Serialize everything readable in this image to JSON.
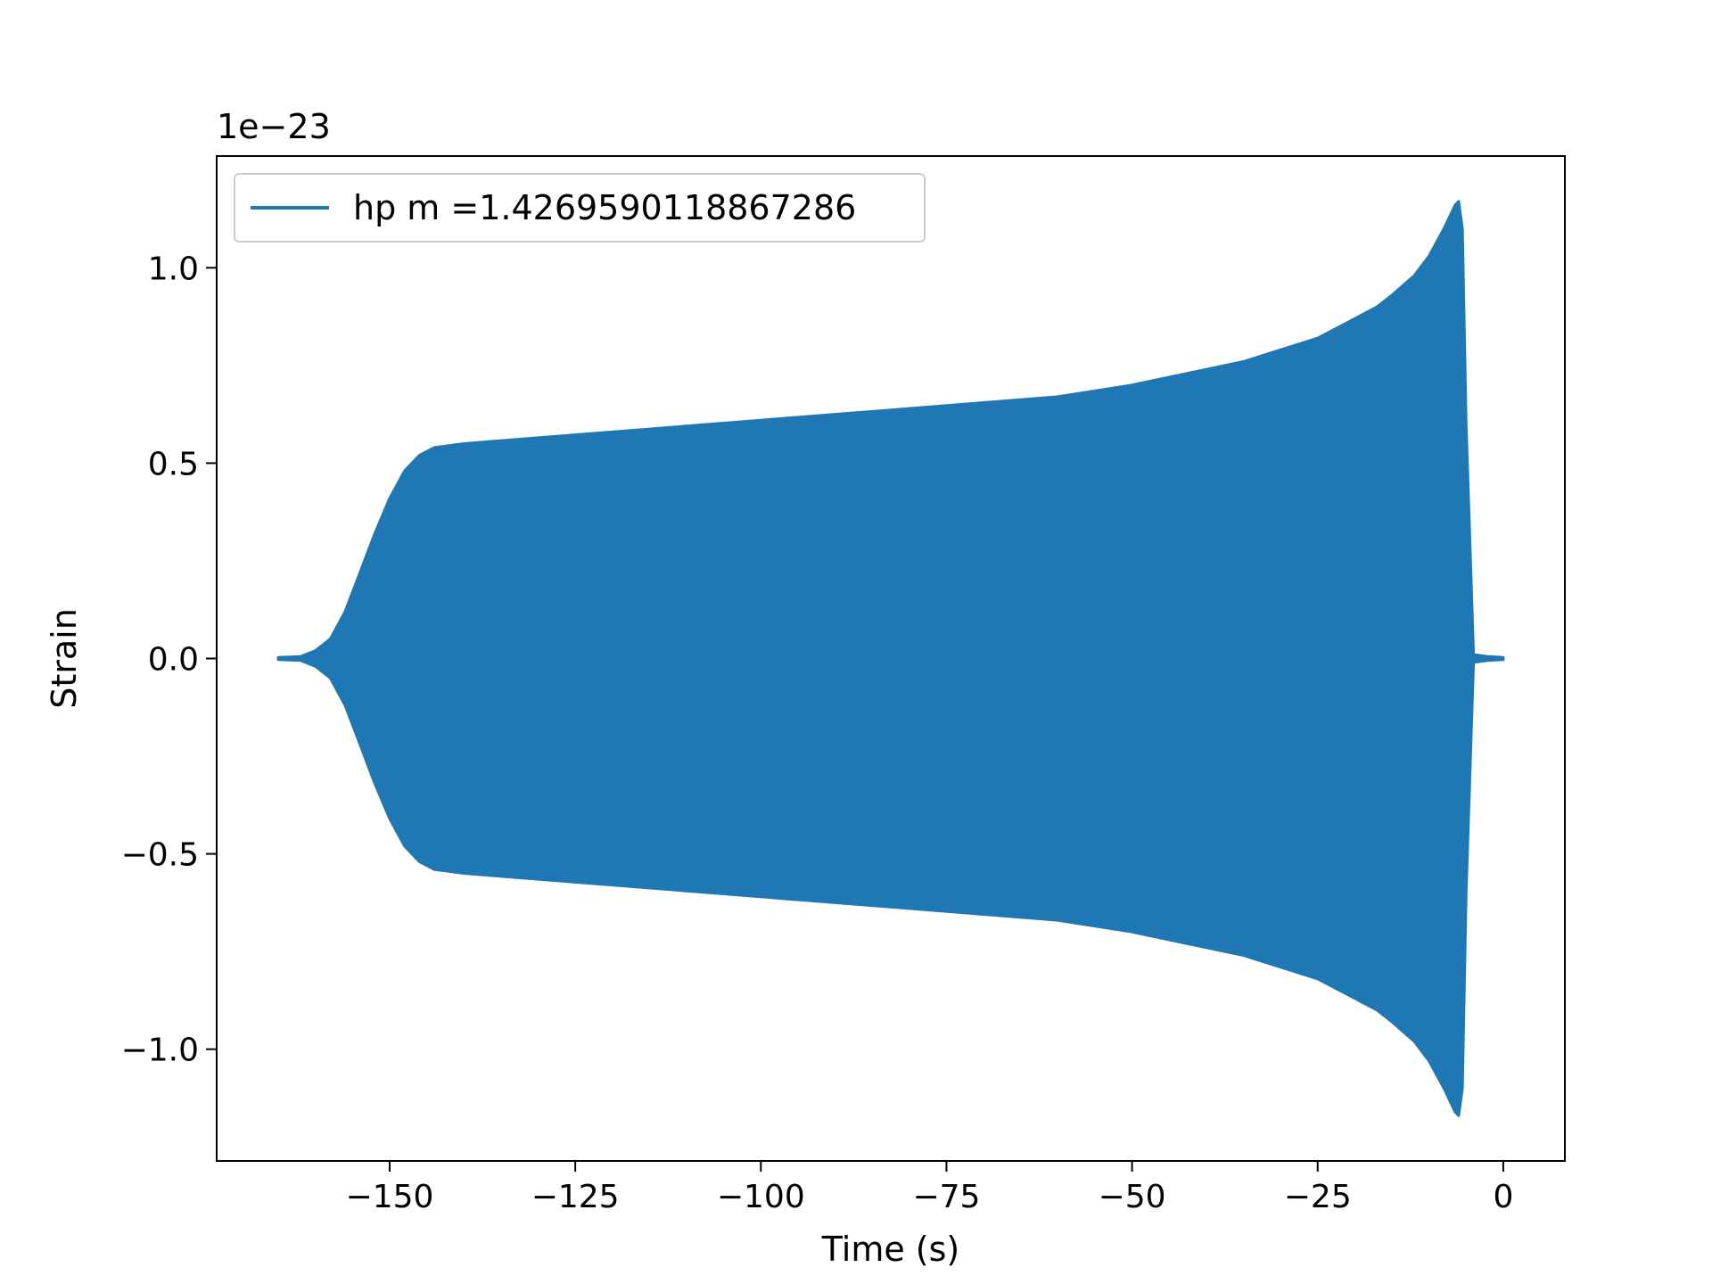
{
  "chart_data": {
    "type": "line",
    "title": "",
    "xlabel": "Time (s)",
    "ylabel": "Strain",
    "y_offset_label": "1e−23",
    "y_scale_factor": 1e-23,
    "xlim": [
      -173.3,
      8.3
    ],
    "ylim": [
      -1.286,
      1.286
    ],
    "xticks": [
      -150,
      -125,
      -100,
      -75,
      -50,
      -25,
      0
    ],
    "xtick_labels": [
      "−150",
      "−125",
      "−100",
      "−75",
      "−50",
      "−25",
      "0"
    ],
    "yticks": [
      -1.0,
      -0.5,
      0.0,
      0.5,
      1.0
    ],
    "ytick_labels": [
      "−1.0",
      "−0.5",
      "0.0",
      "0.5",
      "1.0"
    ],
    "grid": false,
    "legend_position": "top-left",
    "series": [
      {
        "name": "hp m =1.4269590118867286",
        "color": "#1f77b4",
        "description_kind": "oscillating strain waveform (envelope)",
        "envelope_t": [
          -165,
          -162,
          -160,
          -158,
          -156,
          -154,
          -152,
          -150,
          -148,
          -146,
          -144,
          -142,
          -140,
          -130,
          -120,
          -110,
          -100,
          -90,
          -80,
          -70,
          -60,
          -50,
          -40,
          -35,
          -30,
          -25,
          -20,
          -17,
          -15,
          -12,
          -10,
          -8,
          -6.5,
          -6,
          -5.5,
          -5,
          -4,
          -2,
          0
        ],
        "envelope_upper": [
          0.003,
          0.005,
          0.02,
          0.05,
          0.12,
          0.22,
          0.32,
          0.41,
          0.48,
          0.52,
          0.54,
          0.545,
          0.55,
          0.565,
          0.58,
          0.595,
          0.61,
          0.625,
          0.64,
          0.655,
          0.67,
          0.7,
          0.74,
          0.76,
          0.79,
          0.82,
          0.87,
          0.9,
          0.93,
          0.98,
          1.03,
          1.1,
          1.16,
          1.17,
          1.1,
          0.6,
          0.01,
          0.005,
          0.003
        ],
        "envelope_lower": [
          -0.003,
          -0.005,
          -0.02,
          -0.05,
          -0.12,
          -0.22,
          -0.32,
          -0.41,
          -0.48,
          -0.52,
          -0.54,
          -0.545,
          -0.55,
          -0.565,
          -0.58,
          -0.595,
          -0.61,
          -0.625,
          -0.64,
          -0.655,
          -0.67,
          -0.7,
          -0.74,
          -0.76,
          -0.79,
          -0.82,
          -0.87,
          -0.9,
          -0.93,
          -0.98,
          -1.03,
          -1.1,
          -1.16,
          -1.17,
          -1.1,
          -0.6,
          -0.01,
          -0.005,
          -0.003
        ]
      }
    ]
  }
}
